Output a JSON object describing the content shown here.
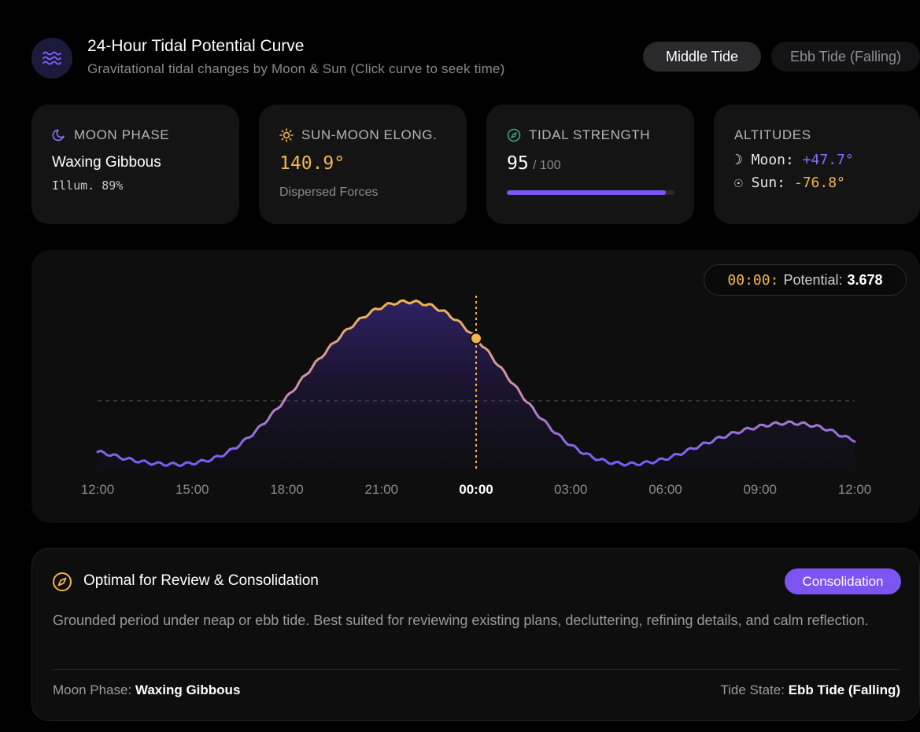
{
  "header": {
    "title": "24-Hour Tidal Potential Curve",
    "subtitle": "Gravitational tidal changes by Moon & Sun (Click curve to seek time)",
    "logo_icon": "waves-icon",
    "tabs": [
      {
        "label": "Middle Tide",
        "active": true
      },
      {
        "label": "Ebb Tide (Falling)",
        "active": false
      }
    ]
  },
  "cards": {
    "moon_phase": {
      "label": "MOON PHASE",
      "icon": "moon-icon",
      "value": "Waxing Gibbous",
      "sub": "Illum. 89%"
    },
    "elongation": {
      "label": "SUN-MOON ELONG.",
      "icon": "sun-icon",
      "value": "140.9°",
      "sub": "Dispersed Forces"
    },
    "strength": {
      "label": "TIDAL STRENGTH",
      "icon": "compass-icon",
      "value": "95",
      "max": "/ 100",
      "percent": 95
    },
    "altitudes": {
      "label": "ALTITUDES",
      "moon_label": "☽ Moon:",
      "moon_value": "+47.7°",
      "sun_label": "☉ Sun:",
      "sun_value": "-76.8°"
    }
  },
  "chart": {
    "readout_time": "00:00:",
    "readout_label": "Potential:",
    "readout_value": "3.678"
  },
  "chart_data": {
    "type": "line",
    "x_labels": [
      "12:00",
      "15:00",
      "18:00",
      "21:00",
      "00:00",
      "03:00",
      "06:00",
      "09:00",
      "12:00"
    ],
    "selected_label": "00:00",
    "x_hours": [
      0,
      1,
      2,
      3,
      4,
      5,
      6,
      7,
      8,
      9,
      10,
      11,
      12,
      13,
      14,
      15,
      16,
      17,
      18,
      19,
      20,
      21,
      22,
      23,
      24
    ],
    "y_values": [
      0.35,
      0.13,
      0.0,
      0.02,
      0.28,
      0.95,
      1.95,
      3.05,
      4.0,
      4.6,
      4.75,
      4.45,
      3.68,
      2.55,
      1.4,
      0.55,
      0.1,
      0.0,
      0.15,
      0.5,
      0.85,
      1.1,
      1.2,
      1.05,
      0.7
    ],
    "mean_line": 1.85,
    "selected_x": 12,
    "selected_y": 3.678,
    "colors": {
      "low": "#7b5cf6",
      "high": "#f4b54e"
    }
  },
  "recommendation": {
    "icon": "compass-icon",
    "title": "Optimal for Review & Consolidation",
    "badge": "Consolidation",
    "description": "Grounded period under neap or ebb tide. Best suited for reviewing existing plans, decluttering, refining details, and calm reflection.",
    "moon_phase_label": "Moon Phase:",
    "moon_phase_value": "Waxing Gibbous",
    "tide_state_label": "Tide State:",
    "tide_state_value": "Ebb Tide (Falling)"
  }
}
